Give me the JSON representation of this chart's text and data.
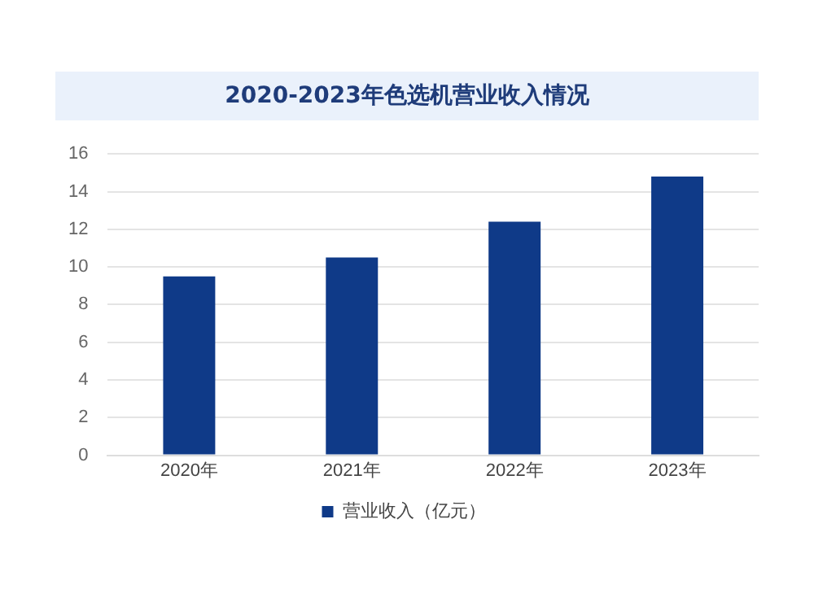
{
  "chart_data": {
    "type": "bar",
    "title": "2020-2023年色选机营业收入情况",
    "categories": [
      "2020年",
      "2021年",
      "2022年",
      "2023年"
    ],
    "series": [
      {
        "name": "营业收入（亿元）",
        "color": "#0f3a88",
        "values": [
          9.5,
          10.5,
          12.4,
          14.8
        ]
      }
    ],
    "ylim": [
      0,
      16
    ],
    "yticks": [
      0,
      2,
      4,
      6,
      8,
      10,
      12,
      14,
      16
    ],
    "grid": "y",
    "legend": "bottom"
  }
}
